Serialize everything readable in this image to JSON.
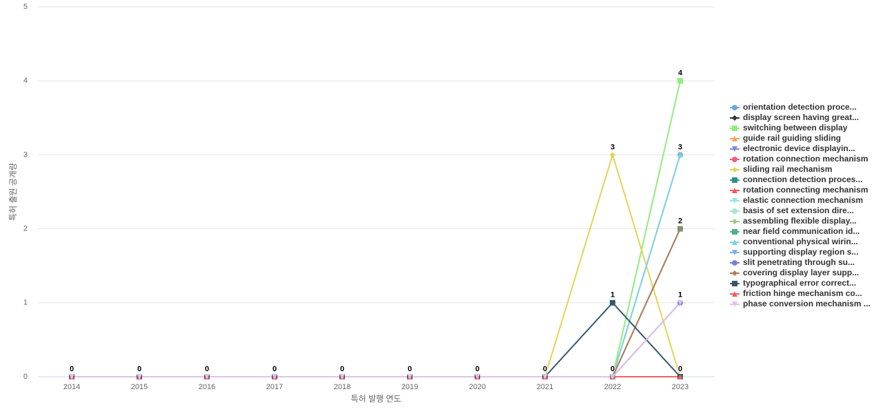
{
  "chart_data": {
    "type": "line",
    "x_label": "특허 발행 연도",
    "y_label": "특허 출원 공개량",
    "categories": [
      "2014",
      "2015",
      "2016",
      "2017",
      "2018",
      "2019",
      "2020",
      "2021",
      "2022",
      "2023"
    ],
    "ylim": [
      0,
      5
    ],
    "yticks": [
      0,
      1,
      2,
      3,
      4,
      5
    ],
    "grid": true,
    "legend": "right",
    "series": [
      {
        "name": "orientation detection proce...",
        "color": "#6fa8dc",
        "marker": "circle",
        "values": [
          0,
          0,
          0,
          0,
          0,
          0,
          0,
          0,
          0,
          3
        ]
      },
      {
        "name": "display screen having great...",
        "color": "#333333",
        "marker": "diamond",
        "values": [
          0,
          0,
          0,
          0,
          0,
          0,
          0,
          0,
          0,
          0
        ]
      },
      {
        "name": "switching between display",
        "color": "#90ed7d",
        "marker": "square",
        "values": [
          0,
          0,
          0,
          0,
          0,
          0,
          0,
          0,
          0,
          4
        ]
      },
      {
        "name": "guide rail guiding sliding",
        "color": "#f7a35c",
        "marker": "triangle",
        "values": [
          0,
          0,
          0,
          0,
          0,
          0,
          0,
          0,
          0,
          0
        ]
      },
      {
        "name": "electronic device displayin...",
        "color": "#8085e9",
        "marker": "triangle-down",
        "values": [
          0,
          0,
          0,
          0,
          0,
          0,
          0,
          0,
          0,
          0
        ]
      },
      {
        "name": "rotation connection mechanism",
        "color": "#f15c80",
        "marker": "circle",
        "values": [
          0,
          0,
          0,
          0,
          0,
          0,
          0,
          0,
          0,
          0
        ]
      },
      {
        "name": "sliding rail mechanism",
        "color": "#e4d354",
        "marker": "diamond",
        "values": [
          0,
          0,
          0,
          0,
          0,
          0,
          0,
          0,
          3,
          0
        ]
      },
      {
        "name": "connection detection proces...",
        "color": "#2b908f",
        "marker": "square",
        "values": [
          0,
          0,
          0,
          0,
          0,
          0,
          0,
          0,
          0,
          0
        ]
      },
      {
        "name": "rotation connecting mechanism",
        "color": "#f45b5b",
        "marker": "triangle",
        "values": [
          0,
          0,
          0,
          0,
          0,
          0,
          0,
          0,
          0,
          0
        ]
      },
      {
        "name": "elastic connection mechanism",
        "color": "#91e8e1",
        "marker": "triangle-down",
        "values": [
          0,
          0,
          0,
          0,
          0,
          0,
          0,
          0,
          0,
          0
        ]
      },
      {
        "name": "basis of set extension dire...",
        "color": "#a8e6cf",
        "marker": "circle",
        "values": [
          0,
          0,
          0,
          0,
          0,
          0,
          0,
          0,
          0,
          0
        ]
      },
      {
        "name": "assembling flexible display...",
        "color": "#a5c882",
        "marker": "diamond",
        "values": [
          0,
          0,
          0,
          0,
          0,
          0,
          0,
          0,
          0,
          0
        ]
      },
      {
        "name": "near field communication id...",
        "color": "#4caf91",
        "marker": "square",
        "values": [
          0,
          0,
          0,
          0,
          0,
          0,
          0,
          0,
          0,
          2
        ]
      },
      {
        "name": "conventional physical wirin...",
        "color": "#7fd3e0",
        "marker": "triangle",
        "values": [
          0,
          0,
          0,
          0,
          0,
          0,
          0,
          0,
          0,
          3
        ]
      },
      {
        "name": "supporting display region s...",
        "color": "#7eb0e8",
        "marker": "triangle-down",
        "values": [
          0,
          0,
          0,
          0,
          0,
          0,
          0,
          0,
          0,
          0
        ]
      },
      {
        "name": "slit penetrating through su...",
        "color": "#7b7fe0",
        "marker": "circle",
        "values": [
          0,
          0,
          0,
          0,
          0,
          0,
          0,
          0,
          0,
          1
        ]
      },
      {
        "name": "covering display layer supp...",
        "color": "#b07c5a",
        "marker": "diamond",
        "values": [
          0,
          0,
          0,
          0,
          0,
          0,
          0,
          0,
          0,
          2
        ]
      },
      {
        "name": "typographical error correct...",
        "color": "#34586e",
        "marker": "square",
        "values": [
          0,
          0,
          0,
          0,
          0,
          0,
          0,
          0,
          1,
          0
        ]
      },
      {
        "name": "friction hinge mechanism co...",
        "color": "#f06060",
        "marker": "triangle",
        "values": [
          0,
          0,
          0,
          0,
          0,
          0,
          0,
          0,
          0,
          0
        ]
      },
      {
        "name": "phase conversion mechanism ...",
        "color": "#e0c0e8",
        "marker": "triangle-down",
        "values": [
          0,
          0,
          0,
          0,
          0,
          0,
          0,
          0,
          0,
          1
        ]
      }
    ]
  }
}
